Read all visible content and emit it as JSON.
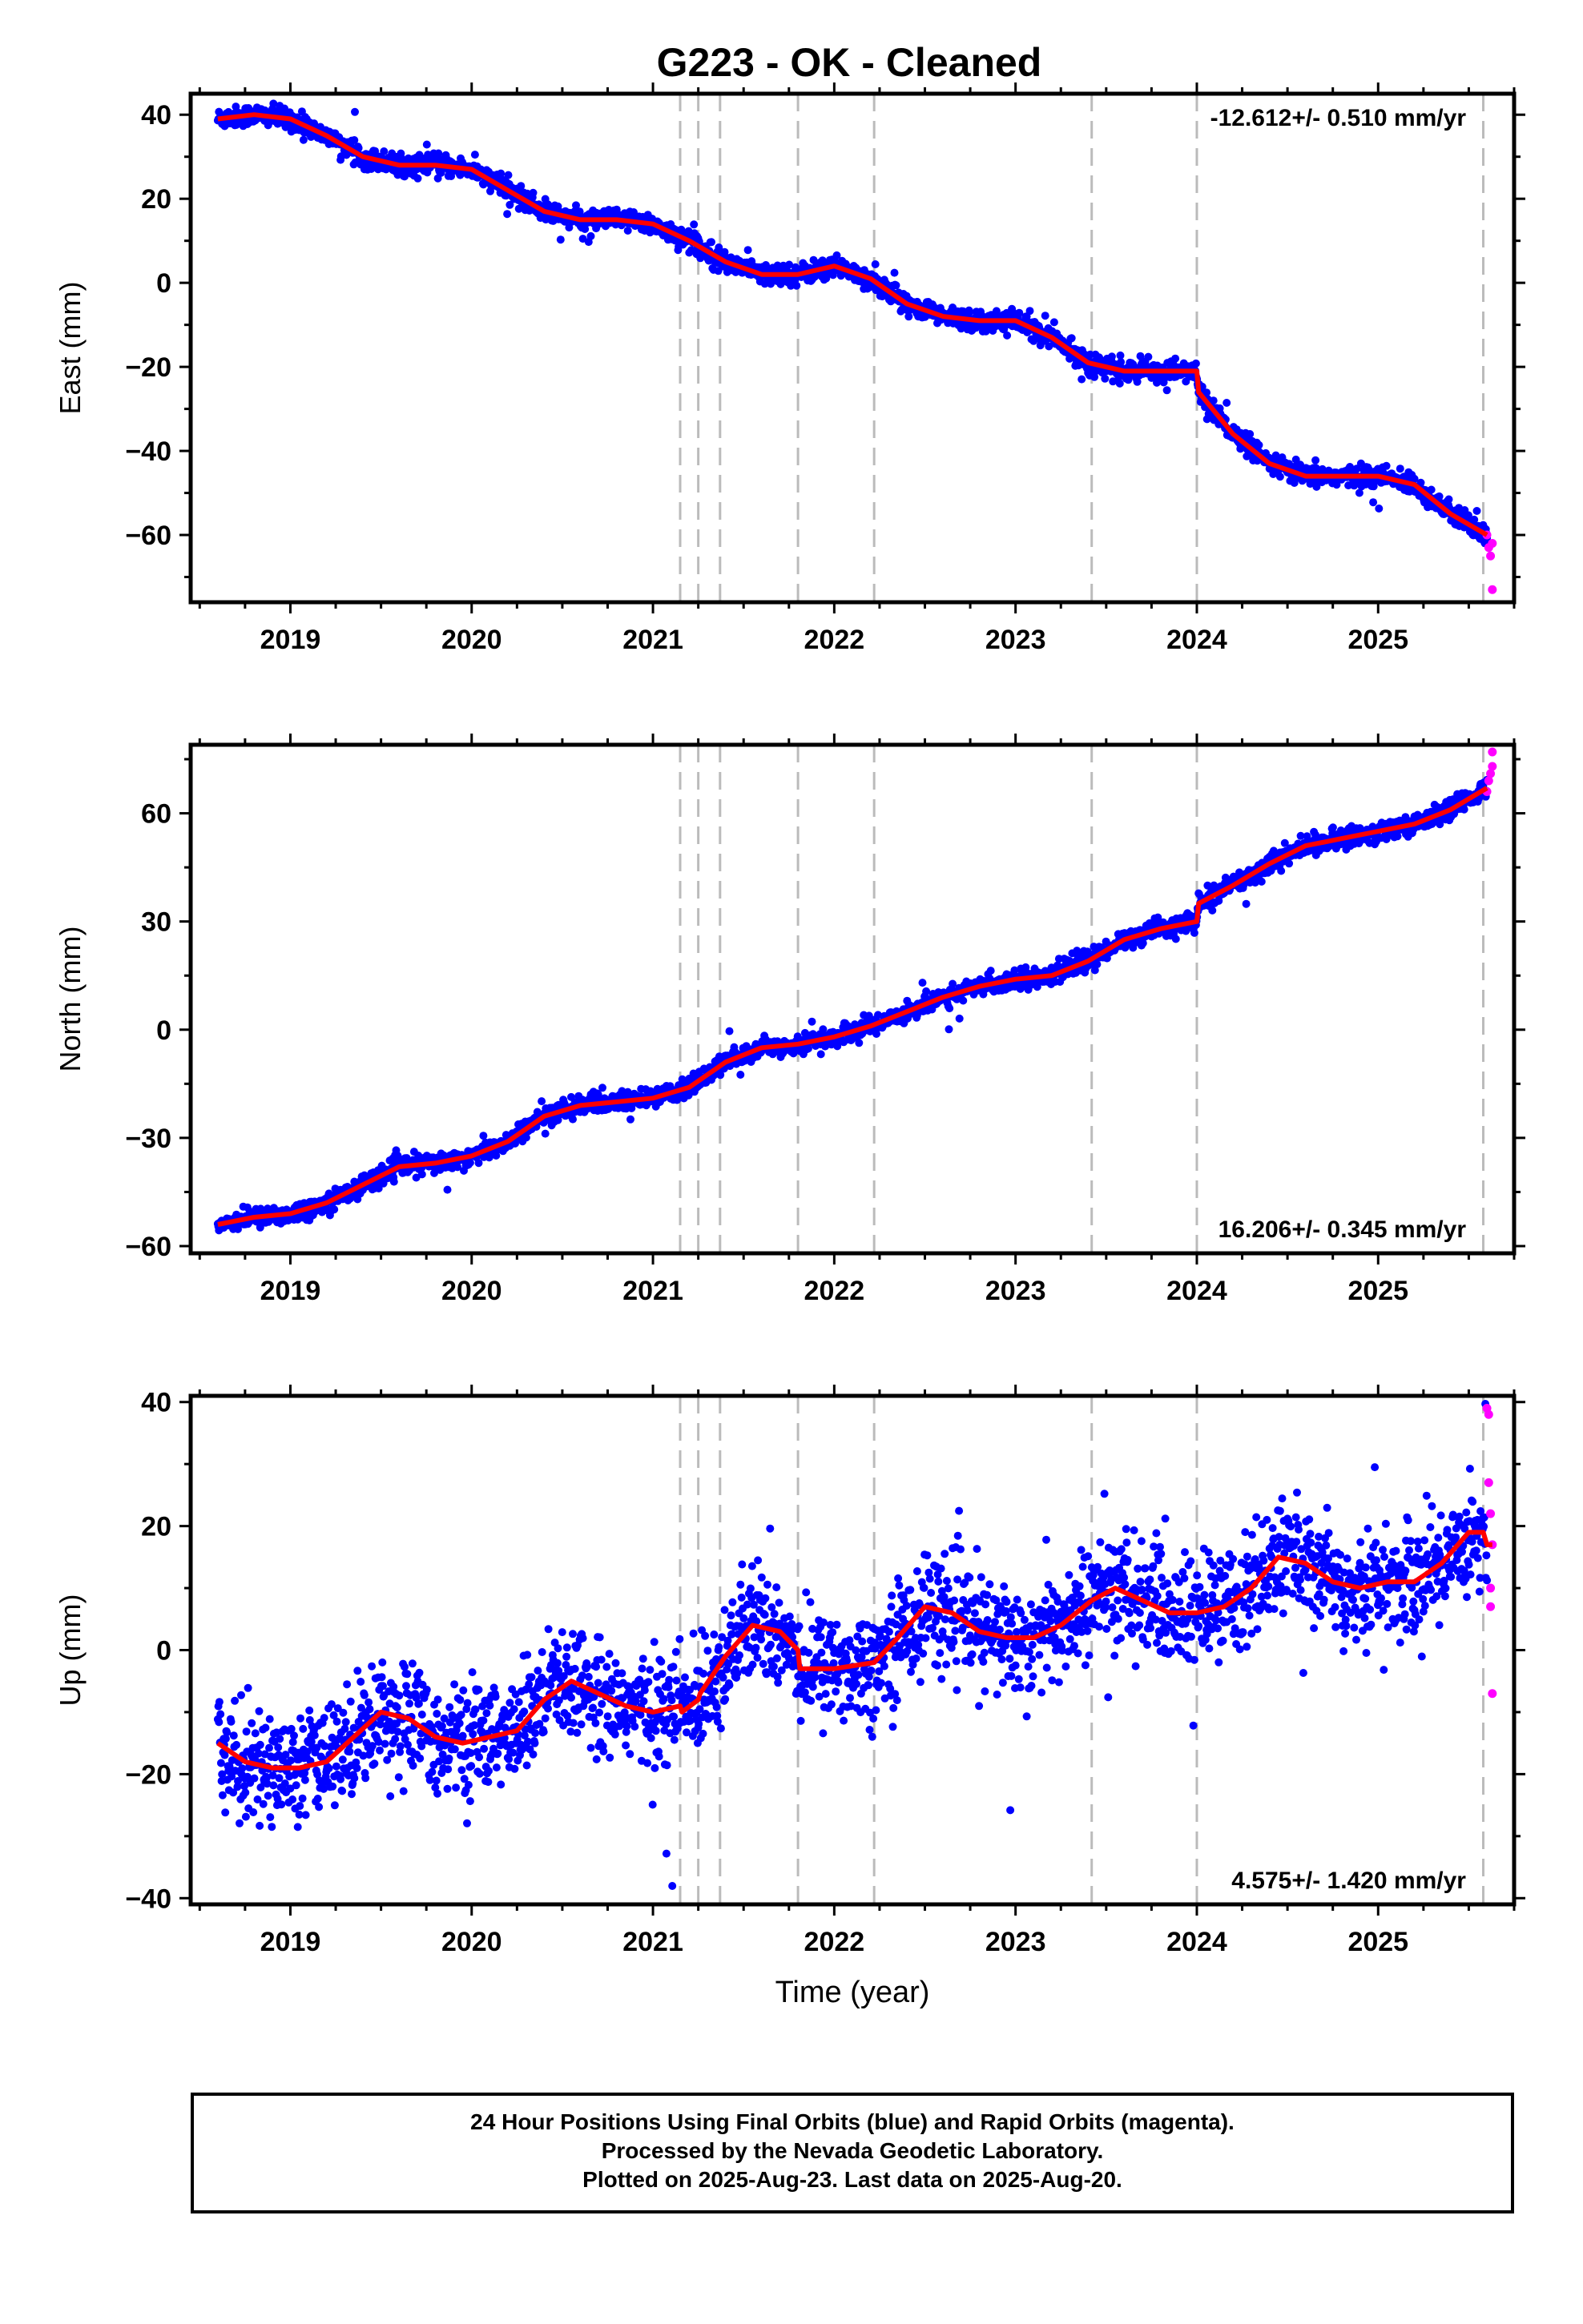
{
  "title": "G223  - OK - Cleaned",
  "colors": {
    "final_orbits": "#0000ff",
    "rapid_orbits": "#ff00ff",
    "model": "#ff0000",
    "breaks": "#bbbbbb"
  },
  "footer": {
    "line1": "24 Hour Positions Using Final Orbits (blue) and Rapid Orbits (magenta).",
    "line2": "Processed by the Nevada Geodetic Laboratory.",
    "line3": "Plotted on 2025-Aug-23. Last data on 2025-Aug-20."
  },
  "chart_data": [
    {
      "type": "scatter",
      "ylabel": "East (mm)",
      "xlabel": "",
      "xlim": [
        2018.45,
        2025.75
      ],
      "ylim": [
        -76,
        45
      ],
      "yticks": [
        -60,
        -40,
        -20,
        0,
        20,
        40
      ],
      "xticks": [
        2019,
        2020,
        2021,
        2022,
        2023,
        2024,
        2025
      ],
      "rate_label": "-12.612+/- 0.510 mm/yr",
      "rate_label_position": "top-right",
      "model_series": {
        "name": "",
        "x": [
          2018.6,
          2018.8,
          2019.0,
          2019.2,
          2019.4,
          2019.6,
          2019.8,
          2020.0,
          2020.2,
          2020.4,
          2020.6,
          2020.8,
          2021.0,
          2021.2,
          2021.4,
          2021.6,
          2021.8,
          2022.0,
          2022.2,
          2022.4,
          2022.6,
          2022.8,
          2023.0,
          2023.2,
          2023.4,
          2023.6,
          2023.8,
          2024.0,
          2024.01,
          2024.2,
          2024.4,
          2024.6,
          2024.8,
          2025.0,
          2025.2,
          2025.4,
          2025.6
        ],
        "y": [
          39,
          40,
          39,
          35,
          30,
          28,
          28,
          27,
          22,
          17,
          15,
          15,
          14,
          10,
          5,
          2,
          2,
          4,
          1,
          -5,
          -8,
          -9,
          -9,
          -13,
          -19,
          -21,
          -21,
          -21,
          -26,
          -36,
          -43,
          -46,
          -46,
          -46,
          -48,
          -55,
          -60
        ]
      },
      "final_orbit_points": {
        "scatter_sd": 1.2,
        "approx_count": 2400,
        "x_range": [
          2018.6,
          2025.6
        ]
      },
      "rapid_orbit_points": {
        "x": [
          2025.6,
          2025.61,
          2025.62,
          2025.63,
          2025.63
        ],
        "y": [
          -60,
          -63,
          -65,
          -62,
          -73
        ]
      },
      "breaks": [
        2021.15,
        2021.25,
        2021.37,
        2021.8,
        2022.22,
        2023.42,
        2024.0,
        2025.58
      ]
    },
    {
      "type": "scatter",
      "ylabel": "North (mm)",
      "xlabel": "",
      "xlim": [
        2018.45,
        2025.75
      ],
      "ylim": [
        -62,
        79
      ],
      "yticks": [
        -60,
        -30,
        0,
        30,
        60
      ],
      "xticks": [
        2019,
        2020,
        2021,
        2022,
        2023,
        2024,
        2025
      ],
      "rate_label": "16.206+/- 0.345 mm/yr",
      "rate_label_position": "bottom-right",
      "model_series": {
        "name": "",
        "x": [
          2018.6,
          2018.8,
          2019.0,
          2019.2,
          2019.4,
          2019.6,
          2019.8,
          2020.0,
          2020.2,
          2020.4,
          2020.6,
          2020.8,
          2021.0,
          2021.2,
          2021.4,
          2021.6,
          2021.8,
          2022.0,
          2022.2,
          2022.4,
          2022.6,
          2022.8,
          2023.0,
          2023.2,
          2023.4,
          2023.6,
          2023.8,
          2024.0,
          2024.01,
          2024.2,
          2024.4,
          2024.6,
          2024.8,
          2025.0,
          2025.2,
          2025.4,
          2025.6
        ],
        "y": [
          -54,
          -52,
          -51,
          -48,
          -43,
          -38,
          -37,
          -35,
          -31,
          -24,
          -21,
          -20,
          -19,
          -16,
          -9,
          -5,
          -4,
          -2,
          1,
          5,
          9,
          12,
          14,
          15,
          19,
          25,
          28,
          30,
          35,
          40,
          46,
          51,
          53,
          55,
          57,
          61,
          67
        ]
      },
      "final_orbit_points": {
        "scatter_sd": 1.3,
        "approx_count": 2400,
        "x_range": [
          2018.6,
          2025.6
        ]
      },
      "rapid_orbit_points": {
        "x": [
          2025.6,
          2025.61,
          2025.62,
          2025.63,
          2025.63
        ],
        "y": [
          66,
          69,
          71,
          73,
          77
        ]
      },
      "breaks": [
        2021.15,
        2021.25,
        2021.37,
        2021.8,
        2022.22,
        2023.42,
        2024.0,
        2025.58
      ]
    },
    {
      "type": "scatter",
      "ylabel": "Up (mm)",
      "xlabel": "Time (year)",
      "xlim": [
        2018.45,
        2025.75
      ],
      "ylim": [
        -41,
        41
      ],
      "yticks": [
        -40,
        -20,
        0,
        20,
        40
      ],
      "xticks": [
        2019,
        2020,
        2021,
        2022,
        2023,
        2024,
        2025
      ],
      "rate_label": "4.575+/- 1.420 mm/yr",
      "rate_label_position": "bottom-right",
      "model_series": {
        "name": "",
        "x": [
          2018.6,
          2018.75,
          2018.9,
          2019.05,
          2019.2,
          2019.35,
          2019.5,
          2019.65,
          2019.8,
          2019.95,
          2020.1,
          2020.25,
          2020.4,
          2020.55,
          2020.7,
          2020.85,
          2021.0,
          2021.15,
          2021.16,
          2021.25,
          2021.26,
          2021.4,
          2021.55,
          2021.7,
          2021.8,
          2021.81,
          2022.0,
          2022.22,
          2022.35,
          2022.5,
          2022.65,
          2022.8,
          2022.95,
          2023.1,
          2023.25,
          2023.42,
          2023.55,
          2023.7,
          2023.85,
          2024.0,
          2024.15,
          2024.3,
          2024.45,
          2024.6,
          2024.75,
          2024.9,
          2025.05,
          2025.2,
          2025.35,
          2025.5,
          2025.58,
          2025.6,
          2025.63
        ],
        "y": [
          -15,
          -18,
          -19,
          -19,
          -18,
          -14,
          -10,
          -11,
          -14,
          -15,
          -14,
          -13,
          -8,
          -5,
          -7,
          -9,
          -10,
          -9,
          -10,
          -8,
          -7,
          -1,
          4,
          3,
          0,
          -3,
          -3,
          -2,
          2,
          7,
          6,
          3,
          2,
          2,
          4,
          8,
          10,
          8,
          6,
          6,
          7,
          10,
          15,
          14,
          11,
          10,
          11,
          11,
          14,
          19,
          19,
          17,
          17
        ]
      },
      "final_orbit_points": {
        "scatter_sd": 4.5,
        "approx_count": 2400,
        "x_range": [
          2018.6,
          2025.6
        ]
      },
      "rapid_orbit_points": {
        "x": [
          2025.6,
          2025.61,
          2025.61,
          2025.62,
          2025.62,
          2025.62,
          2025.63,
          2025.63
        ],
        "y": [
          39,
          38,
          27,
          22,
          10,
          7,
          17,
          -7
        ]
      },
      "breaks": [
        2021.15,
        2021.25,
        2021.37,
        2021.8,
        2022.22,
        2023.42,
        2024.0,
        2025.58
      ]
    }
  ]
}
